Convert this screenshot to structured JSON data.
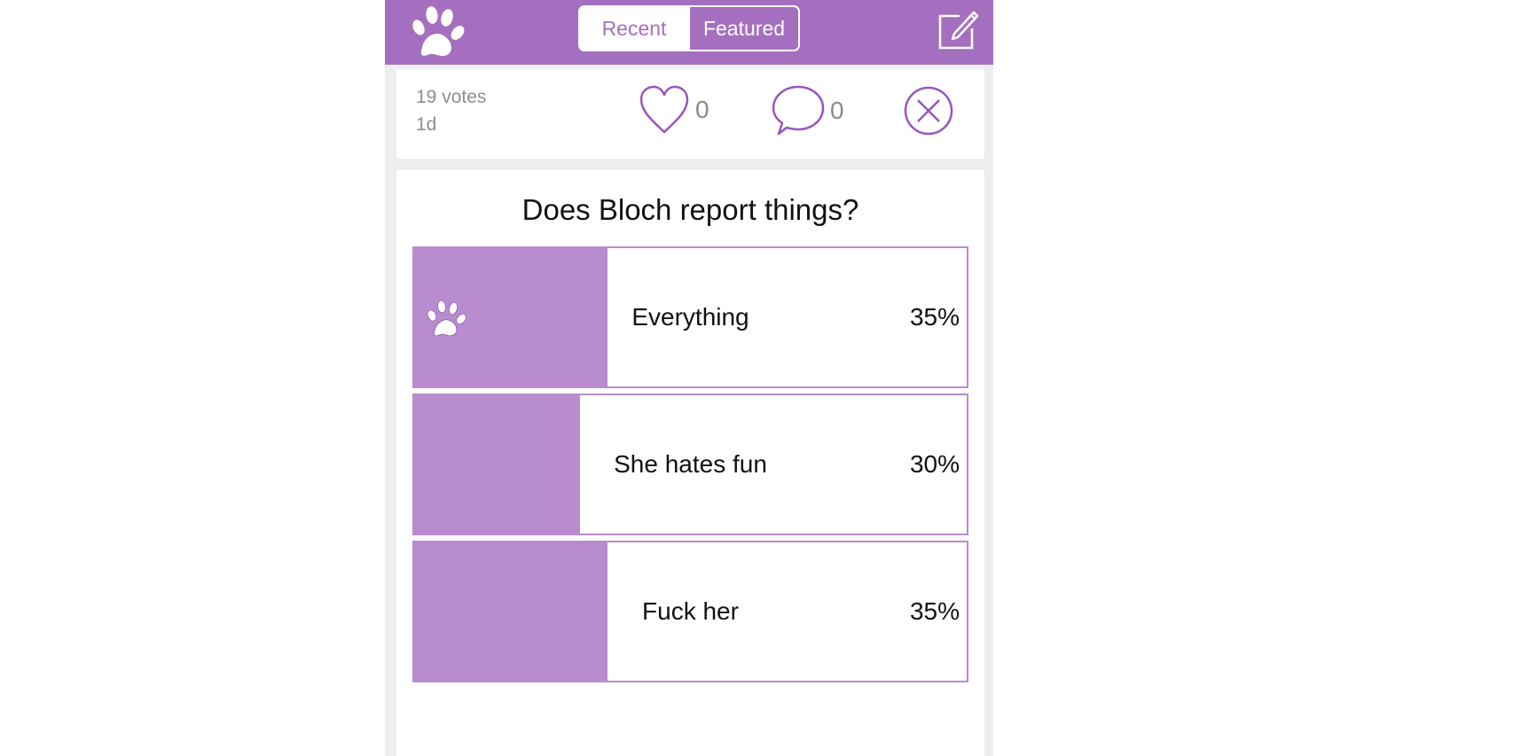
{
  "colors": {
    "brand": "#a56fbf",
    "bar_fill": "#b98ccf",
    "background": "#eceef0"
  },
  "header": {
    "logo_icon": "paw-icon",
    "tabs": [
      {
        "label": "Recent",
        "active": true
      },
      {
        "label": "Featured",
        "active": false
      }
    ],
    "compose_icon": "compose-icon"
  },
  "previous_post": {
    "votes": "19 votes",
    "age": "1d",
    "likes": "0",
    "comments": "0",
    "like_icon": "heart-icon",
    "comment_icon": "speech-bubble-icon",
    "dismiss_icon": "close-circle-icon"
  },
  "poll": {
    "question": "Does Bloch report things?",
    "options": [
      {
        "label": "Everything",
        "percent": "35%",
        "share": 0.35,
        "selected": true
      },
      {
        "label": "She hates fun",
        "percent": "30%",
        "share": 0.3,
        "selected": false
      },
      {
        "label": "Fuck her",
        "percent": "35%",
        "share": 0.35,
        "selected": false
      }
    ]
  }
}
